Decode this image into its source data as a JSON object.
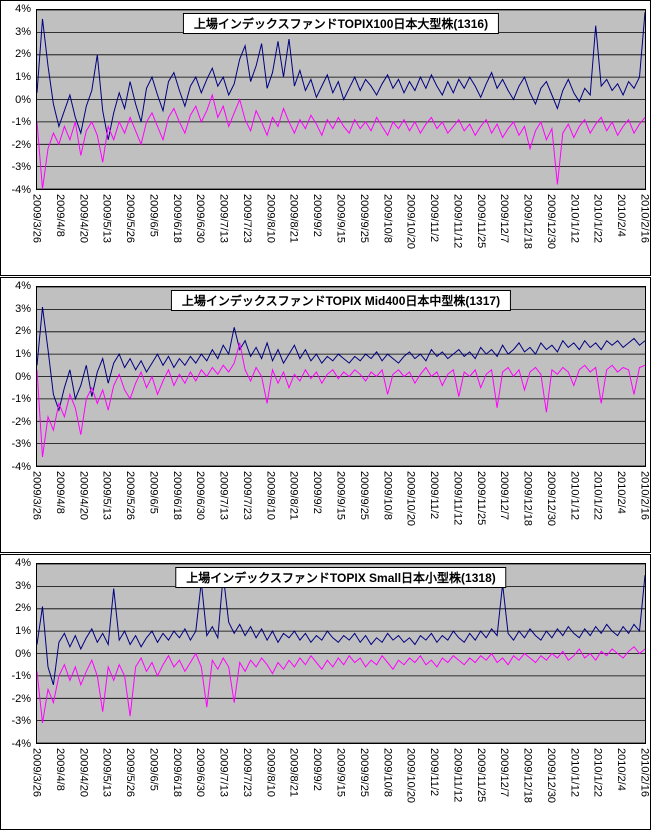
{
  "colors": {
    "plot_background": "#c0c0c0",
    "grid": "#000000",
    "navy_series": "#000080",
    "magenta_series": "#ff00ff"
  },
  "chart_data": [
    {
      "type": "line",
      "title": "上場インデックスファンドTOPIX100日本大型株(1316)",
      "ylim": [
        -4,
        4
      ],
      "grid": true,
      "legend": "none",
      "yticks": [
        "4%",
        "3%",
        "2%",
        "1%",
        "0%",
        "-1%",
        "-2%",
        "-3%",
        "-4%"
      ],
      "xticks": [
        "2009/3/26",
        "2009/4/8",
        "2009/4/20",
        "2009/5/13",
        "2009/5/26",
        "2009/6/5",
        "2009/6/18",
        "2009/6/30",
        "2009/7/13",
        "2009/7/23",
        "2009/8/10",
        "2009/8/21",
        "2009/9/2",
        "2009/9/15",
        "2009/9/25",
        "2009/10/8",
        "2009/10/20",
        "2009/11/2",
        "2009/11/12",
        "2009/11/25",
        "2009/12/7",
        "2009/12/18",
        "2009/12/30",
        "2010/1/12",
        "2010/1/22",
        "2010/2/4",
        "2010/2/16"
      ],
      "series": [
        {
          "name": "navy-series",
          "color": "#000080",
          "values": [
            0.3,
            3.6,
            1.5,
            -0.2,
            -1.2,
            -0.5,
            0.2,
            -0.8,
            -1.5,
            -0.3,
            0.4,
            2.0,
            -0.5,
            -1.8,
            -0.6,
            0.3,
            -0.4,
            0.8,
            -0.2,
            -1.0,
            0.5,
            1.0,
            0.2,
            -0.5,
            0.8,
            1.2,
            0.4,
            -0.3,
            0.6,
            1.0,
            0.3,
            0.9,
            1.4,
            0.6,
            1.0,
            0.2,
            0.7,
            1.8,
            2.4,
            0.8,
            1.5,
            2.5,
            0.5,
            1.2,
            2.6,
            1.0,
            2.7,
            0.6,
            1.3,
            0.4,
            0.9,
            0.1,
            0.6,
            1.1,
            0.3,
            0.8,
            0.0,
            0.5,
            1.0,
            0.4,
            0.9,
            0.6,
            0.2,
            0.7,
            1.1,
            0.5,
            0.9,
            0.3,
            0.8,
            0.4,
            1.0,
            0.5,
            1.1,
            0.6,
            0.2,
            0.8,
            0.3,
            0.9,
            0.5,
            1.0,
            0.6,
            0.1,
            0.7,
            1.2,
            0.5,
            0.9,
            0.4,
            0.0,
            0.6,
            1.0,
            0.3,
            -0.2,
            0.5,
            0.8,
            0.2,
            -0.4,
            0.4,
            0.9,
            0.3,
            -0.1,
            0.5,
            0.2,
            3.3,
            0.6,
            0.9,
            0.4,
            0.7,
            0.2,
            0.8,
            0.5,
            1.0,
            3.9
          ]
        },
        {
          "name": "magenta-series",
          "color": "#ff00ff",
          "values": [
            -1.0,
            -4.0,
            -2.2,
            -1.5,
            -2.0,
            -1.2,
            -1.8,
            -1.0,
            -2.5,
            -1.4,
            -1.0,
            -1.6,
            -2.8,
            -1.2,
            -1.8,
            -1.0,
            -1.5,
            -0.8,
            -1.4,
            -2.0,
            -1.0,
            -0.6,
            -1.2,
            -1.8,
            -0.8,
            -0.4,
            -1.0,
            -1.5,
            -0.7,
            -0.3,
            -1.0,
            -0.5,
            0.2,
            -0.8,
            -0.3,
            -1.2,
            -0.6,
            0.0,
            -0.9,
            -1.4,
            -0.5,
            -1.0,
            -1.6,
            -0.8,
            -1.2,
            -0.4,
            -1.0,
            -1.5,
            -0.9,
            -1.3,
            -0.7,
            -1.1,
            -1.6,
            -0.9,
            -1.3,
            -0.8,
            -1.2,
            -1.5,
            -0.9,
            -1.3,
            -1.0,
            -1.4,
            -0.8,
            -1.2,
            -1.6,
            -1.0,
            -1.3,
            -0.9,
            -1.4,
            -1.0,
            -1.5,
            -1.1,
            -0.8,
            -1.3,
            -1.0,
            -1.5,
            -1.2,
            -0.9,
            -1.4,
            -1.1,
            -1.6,
            -1.2,
            -0.9,
            -1.5,
            -1.1,
            -1.7,
            -1.3,
            -1.0,
            -1.6,
            -1.2,
            -2.2,
            -1.4,
            -1.0,
            -1.8,
            -1.3,
            -3.8,
            -1.5,
            -1.1,
            -1.7,
            -1.2,
            -0.9,
            -1.5,
            -1.1,
            -0.8,
            -1.4,
            -1.0,
            -1.6,
            -1.2,
            -0.9,
            -1.5,
            -1.1,
            -0.8
          ]
        }
      ]
    },
    {
      "type": "line",
      "title": "上場インデックスファンドTOPIX Mid400日本中型株(1317)",
      "ylim": [
        -4,
        4
      ],
      "grid": true,
      "legend": "none",
      "yticks": [
        "4%",
        "3%",
        "2%",
        "1%",
        "0%",
        "-1%",
        "-2%",
        "-3%",
        "-4%"
      ],
      "xticks": [
        "2009/3/26",
        "2009/4/8",
        "2009/4/20",
        "2009/5/13",
        "2009/5/26",
        "2009/6/5",
        "2009/6/18",
        "2009/6/30",
        "2009/7/13",
        "2009/7/23",
        "2009/8/10",
        "2009/8/21",
        "2009/9/2",
        "2009/9/15",
        "2009/9/25",
        "2009/10/8",
        "2009/10/20",
        "2009/11/2",
        "2009/11/12",
        "2009/11/25",
        "2009/12/7",
        "2009/12/18",
        "2009/12/30",
        "2010/1/12",
        "2010/1/22",
        "2010/2/4",
        "2010/2/16"
      ],
      "series": [
        {
          "name": "navy-series",
          "color": "#000080",
          "values": [
            0.5,
            3.1,
            1.2,
            -0.8,
            -1.5,
            -0.5,
            0.3,
            -1.0,
            -0.4,
            0.5,
            -0.9,
            0.2,
            0.8,
            -0.3,
            0.6,
            1.0,
            0.4,
            0.8,
            0.3,
            0.7,
            0.2,
            0.6,
            1.0,
            0.5,
            0.9,
            0.4,
            0.8,
            0.5,
            0.9,
            0.6,
            1.0,
            0.7,
            1.2,
            0.8,
            1.4,
            1.0,
            2.2,
            1.2,
            1.6,
            0.9,
            1.3,
            0.8,
            1.5,
            0.7,
            1.2,
            0.6,
            1.0,
            1.4,
            0.8,
            1.2,
            0.7,
            1.0,
            0.6,
            0.9,
            0.7,
            1.0,
            0.8,
            0.6,
            0.9,
            0.7,
            1.0,
            0.8,
            1.1,
            0.7,
            1.0,
            0.8,
            0.6,
            0.9,
            1.1,
            0.8,
            1.0,
            0.7,
            1.2,
            0.9,
            1.1,
            0.8,
            1.0,
            1.2,
            0.9,
            1.1,
            0.8,
            1.3,
            1.0,
            1.2,
            0.9,
            1.4,
            1.0,
            1.2,
            1.5,
            1.1,
            1.3,
            1.0,
            1.5,
            1.2,
            1.4,
            1.1,
            1.6,
            1.3,
            1.5,
            1.2,
            1.6,
            1.3,
            1.5,
            1.2,
            1.6,
            1.4,
            1.6,
            1.3,
            1.5,
            1.7,
            1.4,
            1.6
          ]
        },
        {
          "name": "magenta-series",
          "color": "#ff00ff",
          "values": [
            0.3,
            -3.6,
            -1.8,
            -2.4,
            -1.2,
            -1.8,
            -0.8,
            -1.4,
            -2.6,
            -1.0,
            -0.5,
            -1.2,
            -0.6,
            -1.5,
            -0.4,
            0.1,
            -0.6,
            -1.0,
            -0.3,
            0.2,
            -0.5,
            0.0,
            -0.8,
            -0.2,
            0.3,
            -0.4,
            0.1,
            -0.3,
            0.2,
            -0.2,
            0.3,
            0.0,
            0.4,
            0.1,
            0.5,
            0.2,
            0.6,
            1.5,
            0.3,
            -0.2,
            0.4,
            0.0,
            -1.2,
            0.3,
            -0.3,
            0.2,
            -0.5,
            0.1,
            -0.2,
            0.3,
            -0.1,
            0.2,
            -0.3,
            0.1,
            0.3,
            -0.1,
            0.2,
            0.0,
            0.3,
            0.1,
            -0.2,
            0.2,
            0.0,
            0.3,
            -0.8,
            0.1,
            0.3,
            0.0,
            0.2,
            -0.3,
            0.1,
            0.4,
            0.0,
            0.2,
            -0.4,
            0.1,
            0.3,
            -0.9,
            0.2,
            0.0,
            0.3,
            -0.5,
            0.1,
            0.3,
            -1.4,
            0.2,
            0.4,
            0.0,
            0.3,
            -0.6,
            0.2,
            0.4,
            0.1,
            -1.6,
            0.3,
            0.1,
            0.4,
            0.2,
            -0.4,
            0.3,
            0.5,
            0.2,
            0.4,
            -1.2,
            0.3,
            0.5,
            0.2,
            0.4,
            0.3,
            -0.8,
            0.4,
            0.5
          ]
        }
      ]
    },
    {
      "type": "line",
      "title": "上場インデックスファンドTOPIX Small日本小型株(1318)",
      "ylim": [
        -4,
        4
      ],
      "grid": true,
      "legend": "none",
      "yticks": [
        "4%",
        "3%",
        "2%",
        "1%",
        "0%",
        "-1%",
        "-2%",
        "-3%",
        "-4%"
      ],
      "xticks": [
        "2009/3/26",
        "2009/4/8",
        "2009/4/20",
        "2009/5/13",
        "2009/5/26",
        "2009/6/5",
        "2009/6/18",
        "2009/6/30",
        "2009/7/13",
        "2009/7/23",
        "2009/8/10",
        "2009/8/21",
        "2009/9/2",
        "2009/9/15",
        "2009/9/25",
        "2009/10/8",
        "2009/10/20",
        "2009/11/2",
        "2009/11/12",
        "2009/11/25",
        "2009/12/7",
        "2009/12/18",
        "2009/12/30",
        "2010/1/12",
        "2010/1/22",
        "2010/2/4",
        "2010/2/16"
      ],
      "series": [
        {
          "name": "navy-series",
          "color": "#000080",
          "values": [
            0.4,
            2.1,
            -0.6,
            -1.4,
            0.5,
            0.9,
            0.3,
            0.8,
            0.2,
            0.7,
            1.1,
            0.5,
            0.9,
            0.4,
            2.9,
            0.6,
            1.0,
            0.4,
            0.8,
            0.3,
            0.7,
            1.0,
            0.5,
            0.9,
            0.6,
            1.0,
            0.7,
            1.1,
            0.6,
            1.0,
            3.2,
            0.8,
            1.2,
            0.7,
            3.5,
            1.4,
            0.9,
            1.3,
            0.8,
            1.2,
            0.7,
            1.1,
            0.6,
            1.0,
            0.5,
            0.9,
            0.7,
            1.0,
            0.6,
            0.9,
            0.5,
            0.8,
            0.6,
            1.0,
            0.7,
            0.5,
            0.8,
            0.6,
            0.9,
            0.5,
            0.8,
            0.4,
            0.7,
            0.5,
            0.9,
            0.6,
            0.8,
            0.5,
            0.7,
            0.4,
            0.8,
            0.6,
            0.9,
            0.5,
            0.8,
            0.6,
            1.0,
            0.7,
            0.5,
            0.9,
            0.6,
            1.0,
            0.7,
            1.1,
            0.8,
            3.1,
            0.9,
            0.6,
            1.0,
            0.7,
            1.1,
            0.8,
            0.6,
            1.0,
            0.7,
            1.1,
            0.8,
            1.2,
            0.9,
            0.7,
            1.1,
            0.8,
            1.2,
            0.9,
            1.3,
            1.0,
            0.8,
            1.2,
            0.9,
            1.3,
            1.0,
            3.5
          ]
        },
        {
          "name": "magenta-series",
          "color": "#ff00ff",
          "values": [
            -0.8,
            -3.1,
            -1.6,
            -2.2,
            -1.0,
            -0.5,
            -1.2,
            -0.6,
            -1.4,
            -0.8,
            -0.3,
            -1.0,
            -2.6,
            -0.6,
            -1.2,
            -0.5,
            -1.0,
            -2.8,
            -0.6,
            -0.2,
            -0.8,
            -0.4,
            -1.0,
            -0.5,
            -0.1,
            -0.6,
            -0.3,
            -0.8,
            -0.4,
            0.0,
            -0.6,
            -2.4,
            -0.3,
            -0.7,
            -0.2,
            -0.6,
            -2.2,
            -0.4,
            -0.8,
            -0.3,
            -0.6,
            -0.2,
            -0.5,
            -0.9,
            -0.4,
            -0.7,
            -0.3,
            -0.6,
            -0.2,
            -0.5,
            -0.1,
            -0.4,
            -0.7,
            -0.3,
            -0.6,
            -0.2,
            -0.5,
            -0.1,
            -0.4,
            -0.2,
            -0.6,
            -0.3,
            -0.5,
            -0.1,
            -0.4,
            -0.7,
            -0.3,
            -0.5,
            -0.2,
            -0.4,
            -0.1,
            -0.5,
            -0.3,
            -0.6,
            -0.2,
            -0.4,
            -0.1,
            -0.3,
            -0.5,
            -0.2,
            -0.4,
            -0.1,
            -0.3,
            0.0,
            -0.4,
            -0.2,
            -0.5,
            -0.1,
            -0.3,
            0.0,
            -0.2,
            -0.4,
            -0.1,
            -0.3,
            0.0,
            -0.2,
            0.1,
            -0.3,
            -0.1,
            0.2,
            -0.2,
            0.0,
            -0.3,
            0.1,
            -0.1,
            0.2,
            0.0,
            -0.2,
            0.1,
            0.3,
            0.0,
            0.2
          ]
        }
      ]
    }
  ]
}
